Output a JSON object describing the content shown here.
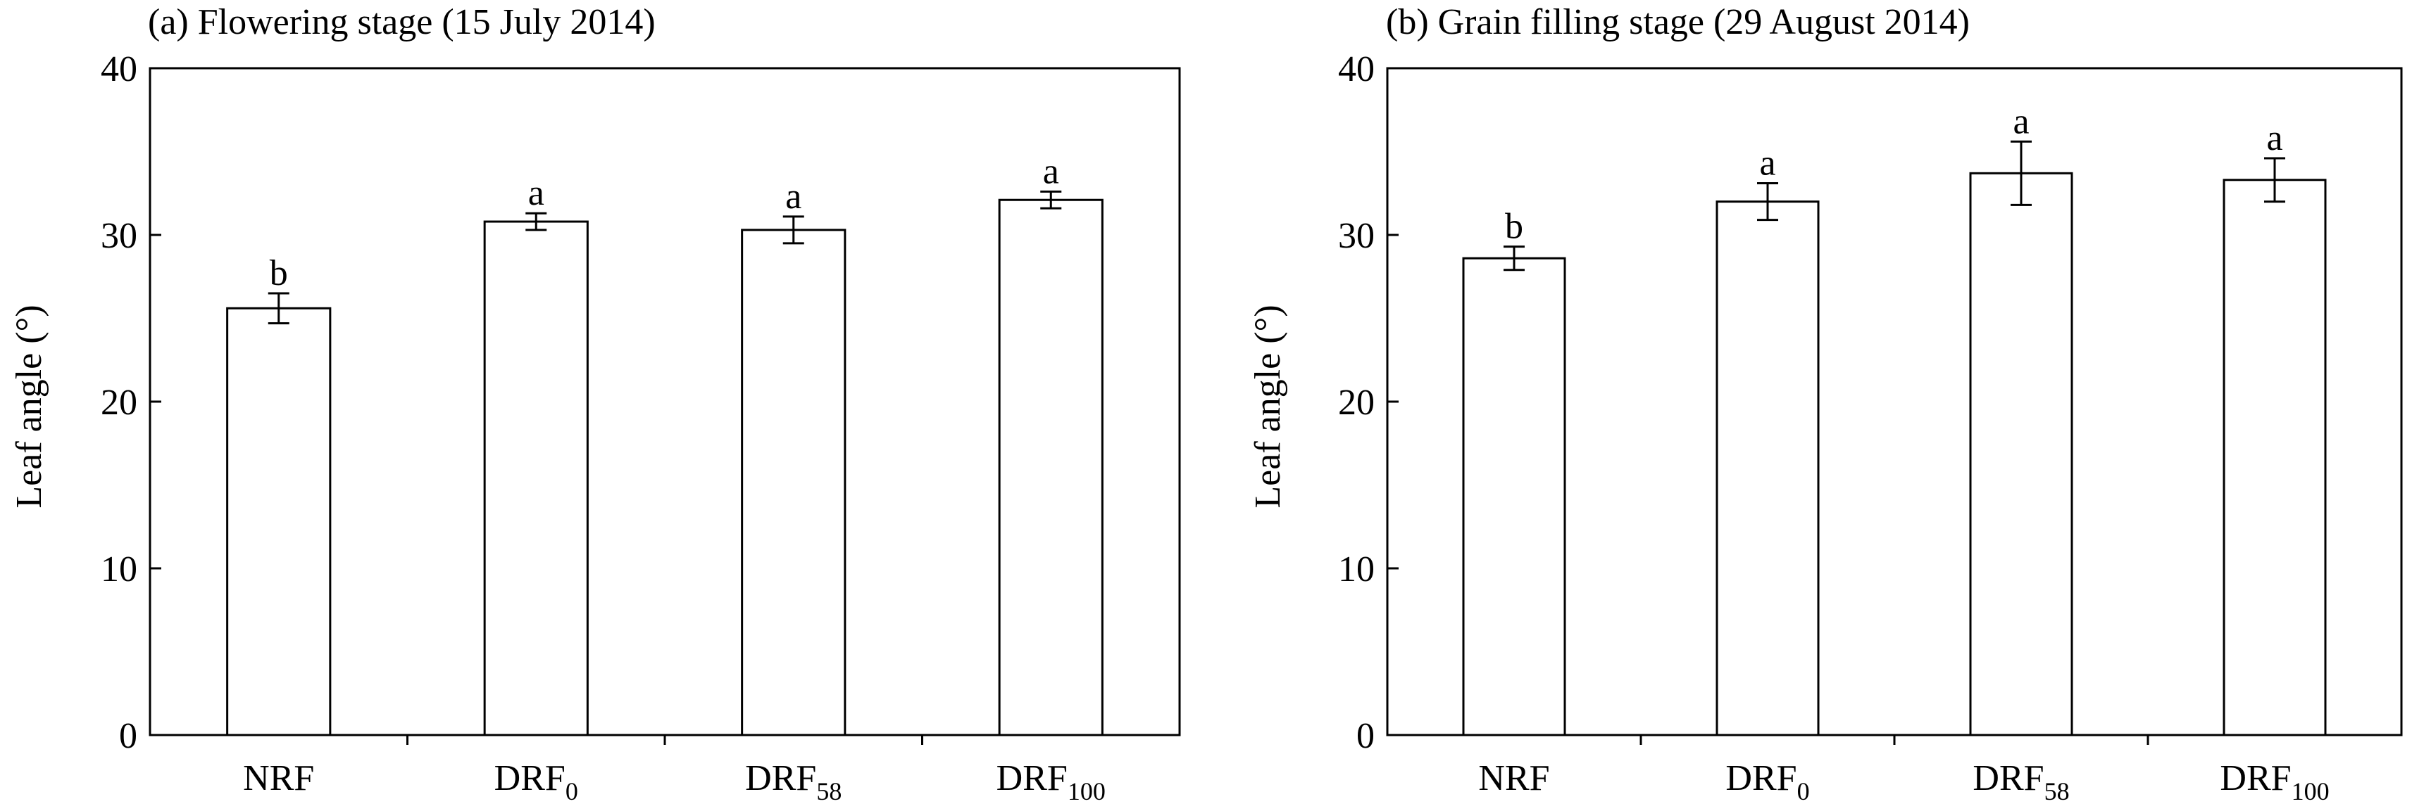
{
  "chart_data": [
    {
      "type": "bar",
      "title": "(a) Flowering stage (15 July 2014)",
      "xlabel": "",
      "ylabel": "Leaf angle (°)",
      "ylim": [
        0,
        40
      ],
      "yticks": [
        0,
        10,
        20,
        30,
        40
      ],
      "categories": [
        {
          "base": "NRF",
          "sub": ""
        },
        {
          "base": "DRF",
          "sub": "0"
        },
        {
          "base": "DRF",
          "sub": "58"
        },
        {
          "base": "DRF",
          "sub": "100"
        }
      ],
      "values": [
        25.6,
        30.8,
        30.3,
        32.1
      ],
      "errors": [
        0.9,
        0.5,
        0.8,
        0.5
      ],
      "letters": [
        "b",
        "a",
        "a",
        "a"
      ],
      "bar_fill": "#ffffff",
      "bar_stroke": "#000000",
      "grid": false,
      "legend": "none"
    },
    {
      "type": "bar",
      "title": "(b) Grain filling stage (29 August 2014)",
      "xlabel": "",
      "ylabel": "Leaf angle (°)",
      "ylim": [
        0,
        40
      ],
      "yticks": [
        0,
        10,
        20,
        30,
        40
      ],
      "categories": [
        {
          "base": "NRF",
          "sub": ""
        },
        {
          "base": "DRF",
          "sub": "0"
        },
        {
          "base": "DRF",
          "sub": "58"
        },
        {
          "base": "DRF",
          "sub": "100"
        }
      ],
      "values": [
        28.6,
        32.0,
        33.7,
        33.3
      ],
      "errors": [
        0.7,
        1.1,
        1.9,
        1.3
      ],
      "letters": [
        "b",
        "a",
        "a",
        "a"
      ],
      "bar_fill": "#ffffff",
      "bar_stroke": "#000000",
      "grid": false,
      "legend": "none"
    }
  ]
}
